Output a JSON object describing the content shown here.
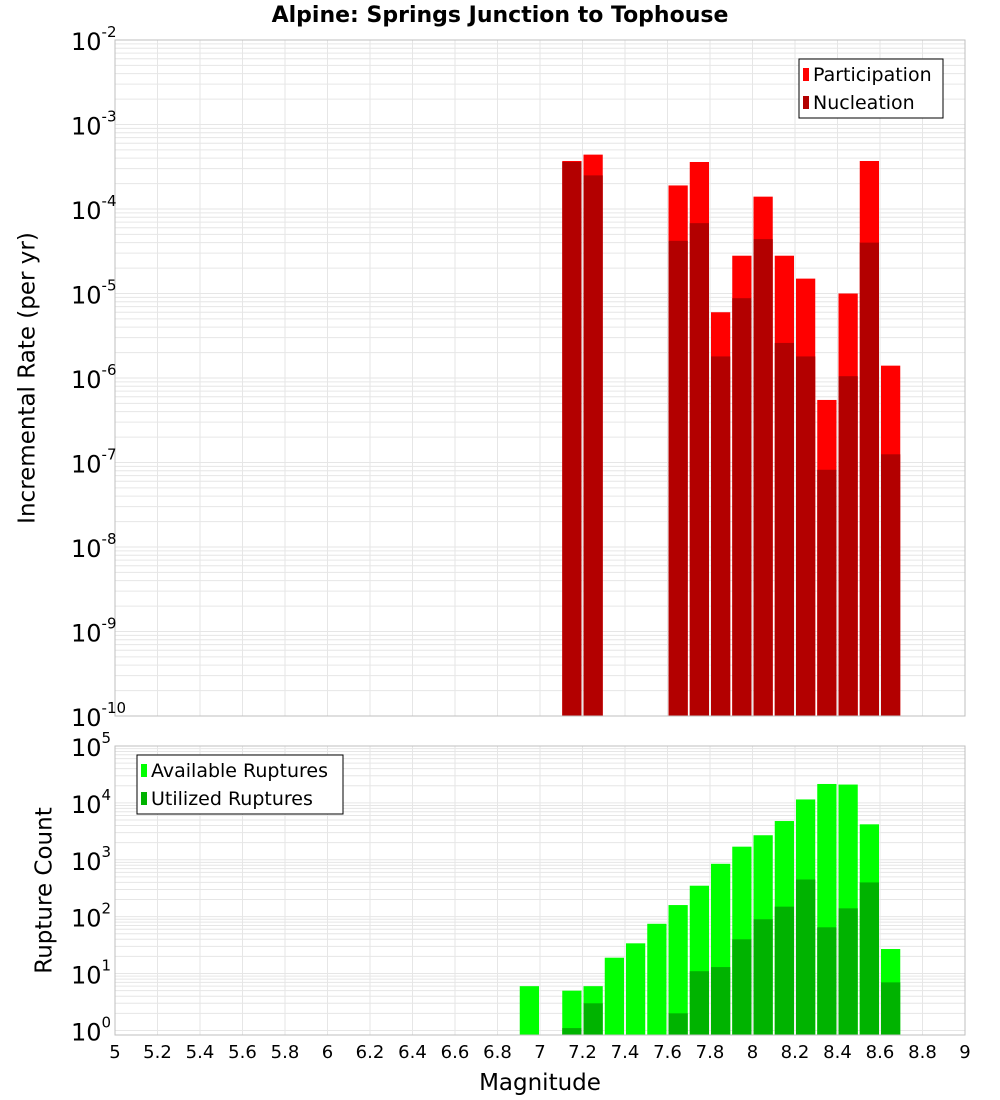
{
  "chart_data": {
    "title": "Alpine: Springs Junction to Tophouse",
    "xlabel": "Magnitude",
    "xlim": [
      5,
      9
    ],
    "xticks": [
      "5",
      "5.2",
      "5.4",
      "5.6",
      "5.8",
      "6",
      "6.2",
      "6.4",
      "6.6",
      "6.8",
      "7",
      "7.2",
      "7.4",
      "7.6",
      "7.8",
      "8",
      "8.2",
      "8.4",
      "8.6",
      "8.8",
      "9"
    ],
    "bin_width": 0.1,
    "colors": {
      "participation": "#ff0000",
      "nucleation": "#b30000",
      "available": "#00ff00",
      "utilized": "#00b300",
      "grid": "#e6e6e6",
      "frame": "#bfbfbf"
    },
    "panels": [
      {
        "type": "bar",
        "scale": "log",
        "ylabel": "Incremental Rate (per yr)",
        "ylim_exp": [
          -10,
          -2
        ],
        "yticks": [
          {
            "base": "10",
            "exp": "-10"
          },
          {
            "base": "10",
            "exp": "-9"
          },
          {
            "base": "10",
            "exp": "-8"
          },
          {
            "base": "10",
            "exp": "-7"
          },
          {
            "base": "10",
            "exp": "-6"
          },
          {
            "base": "10",
            "exp": "-5"
          },
          {
            "base": "10",
            "exp": "-4"
          },
          {
            "base": "10",
            "exp": "-3"
          },
          {
            "base": "10",
            "exp": "-2"
          }
        ],
        "legend_position": "top-right",
        "series": [
          {
            "name": "Participation",
            "color_key": "participation",
            "x": [
              7.15,
              7.25,
              7.65,
              7.75,
              7.85,
              7.95,
              8.05,
              8.15,
              8.25,
              8.35,
              8.45,
              8.55,
              8.65
            ],
            "values": [
              0.00037,
              0.00044,
              0.00019,
              0.00036,
              6e-06,
              2.8e-05,
              0.00014,
              2.8e-05,
              1.5e-05,
              5.5e-07,
              1e-05,
              0.00037,
              1.4e-06
            ]
          },
          {
            "name": "Nucleation",
            "color_key": "nucleation",
            "x": [
              7.15,
              7.25,
              7.65,
              7.75,
              7.85,
              7.95,
              8.05,
              8.15,
              8.25,
              8.35,
              8.45,
              8.55,
              8.65
            ],
            "values": [
              0.00036,
              0.00025,
              4.2e-05,
              6.8e-05,
              1.8e-06,
              8.8e-06,
              4.4e-05,
              2.6e-06,
              1.8e-06,
              8.2e-08,
              1.05e-06,
              4e-05,
              1.25e-07
            ]
          }
        ]
      },
      {
        "type": "bar",
        "scale": "log",
        "ylabel": "Rupture Count",
        "ylim_exp": [
          -0.08,
          5
        ],
        "yticks": [
          {
            "base": "10",
            "exp": "0"
          },
          {
            "base": "10",
            "exp": "1"
          },
          {
            "base": "10",
            "exp": "2"
          },
          {
            "base": "10",
            "exp": "3"
          },
          {
            "base": "10",
            "exp": "4"
          },
          {
            "base": "10",
            "exp": "5"
          }
        ],
        "legend_position": "top-left",
        "series": [
          {
            "name": "Available Ruptures",
            "color_key": "available",
            "x": [
              6.95,
              7.15,
              7.25,
              7.35,
              7.45,
              7.55,
              7.65,
              7.75,
              7.85,
              7.95,
              8.05,
              8.15,
              8.25,
              8.35,
              8.45,
              8.55,
              8.65
            ],
            "values": [
              6,
              5,
              6,
              19,
              34,
              75,
              160,
              350,
              850,
              1700,
              2700,
              4800,
              11500,
              21500,
              21000,
              4200,
              27
            ]
          },
          {
            "name": "Utilized Ruptures",
            "color_key": "utilized",
            "x": [
              7.15,
              7.25,
              7.65,
              7.75,
              7.85,
              7.95,
              8.05,
              8.15,
              8.25,
              8.35,
              8.45,
              8.55,
              8.65
            ],
            "values": [
              1.1,
              3,
              2,
              11,
              13,
              40,
              90,
              150,
              450,
              65,
              140,
              400,
              7
            ]
          }
        ]
      }
    ]
  }
}
